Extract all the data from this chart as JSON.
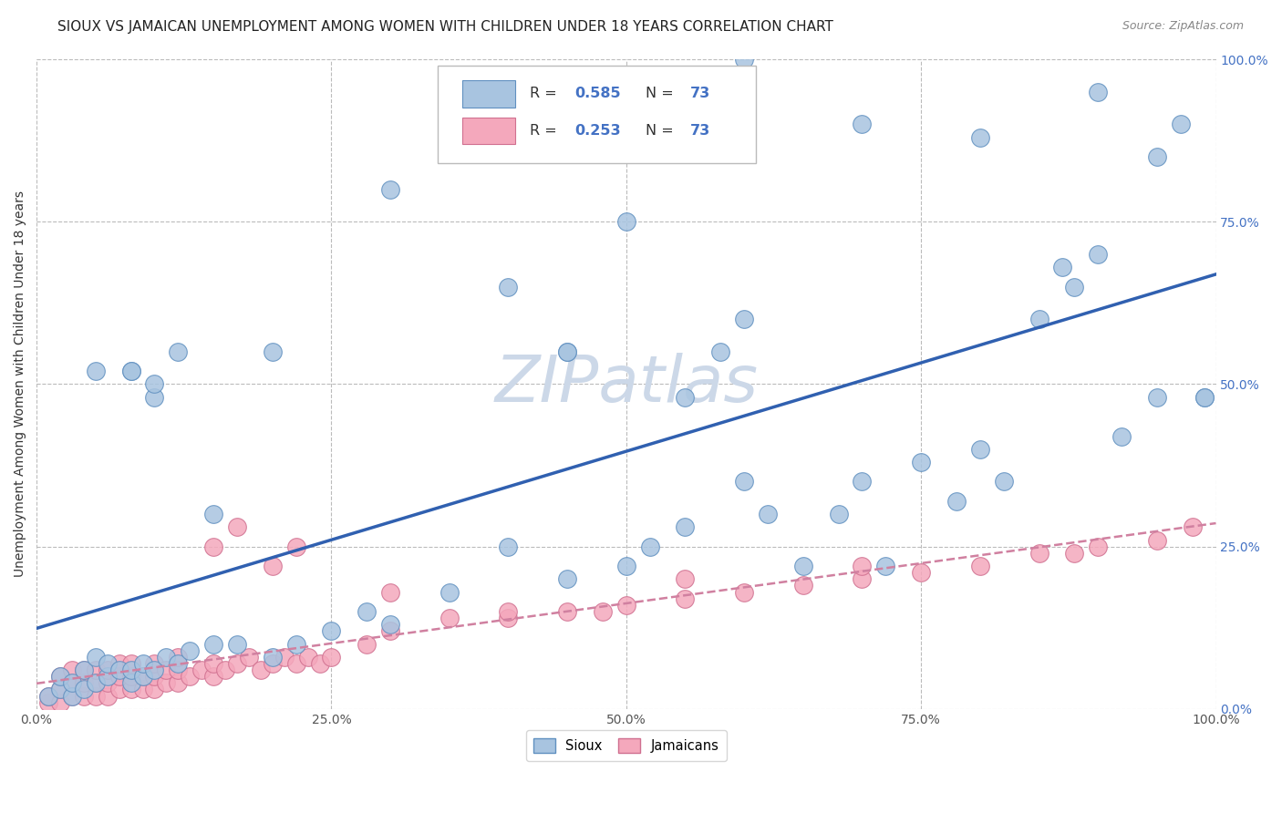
{
  "title": "SIOUX VS JAMAICAN UNEMPLOYMENT AMONG WOMEN WITH CHILDREN UNDER 18 YEARS CORRELATION CHART",
  "source": "Source: ZipAtlas.com",
  "ylabel": "Unemployment Among Women with Children Under 18 years",
  "watermark": "ZIPatlas",
  "sioux_color": "#a8c4e0",
  "sioux_edge_color": "#6090c0",
  "jamaican_color": "#f4a8bc",
  "jamaican_edge_color": "#d07090",
  "sioux_line_color": "#3060b0",
  "jamaican_line_color": "#d06080",
  "jamaican_dash_color": "#d080a0",
  "R_N_color": "#4472c4",
  "background_color": "#ffffff",
  "grid_color": "#bbbbbb",
  "watermark_color": "#ccd8e8",
  "sioux_x": [
    0.01,
    0.02,
    0.02,
    0.03,
    0.03,
    0.04,
    0.04,
    0.05,
    0.05,
    0.06,
    0.06,
    0.07,
    0.08,
    0.08,
    0.09,
    0.09,
    0.1,
    0.11,
    0.12,
    0.13,
    0.05,
    0.08,
    0.1,
    0.12,
    0.15,
    0.17,
    0.2,
    0.22,
    0.25,
    0.28,
    0.3,
    0.35,
    0.4,
    0.45,
    0.45,
    0.5,
    0.52,
    0.55,
    0.6,
    0.62,
    0.65,
    0.68,
    0.7,
    0.72,
    0.75,
    0.78,
    0.8,
    0.82,
    0.85,
    0.87,
    0.88,
    0.9,
    0.92,
    0.95,
    0.97,
    0.99,
    0.58,
    0.6,
    0.1,
    0.08,
    0.15,
    0.2,
    0.3,
    0.4,
    0.5,
    0.6,
    0.7,
    0.8,
    0.9,
    0.95,
    0.99,
    0.45,
    0.55
  ],
  "sioux_y": [
    0.02,
    0.03,
    0.05,
    0.02,
    0.04,
    0.03,
    0.06,
    0.04,
    0.08,
    0.05,
    0.07,
    0.06,
    0.04,
    0.06,
    0.05,
    0.07,
    0.06,
    0.08,
    0.07,
    0.09,
    0.52,
    0.52,
    0.48,
    0.55,
    0.1,
    0.1,
    0.08,
    0.1,
    0.12,
    0.15,
    0.13,
    0.18,
    0.25,
    0.2,
    0.55,
    0.22,
    0.25,
    0.28,
    0.35,
    0.3,
    0.22,
    0.3,
    0.35,
    0.22,
    0.38,
    0.32,
    0.4,
    0.35,
    0.6,
    0.68,
    0.65,
    0.7,
    0.42,
    0.48,
    0.9,
    0.48,
    0.55,
    0.6,
    0.5,
    0.52,
    0.3,
    0.55,
    0.8,
    0.65,
    0.75,
    1.0,
    0.9,
    0.88,
    0.95,
    0.85,
    0.48,
    0.55,
    0.48
  ],
  "jamaican_x": [
    0.01,
    0.01,
    0.02,
    0.02,
    0.02,
    0.03,
    0.03,
    0.03,
    0.04,
    0.04,
    0.04,
    0.05,
    0.05,
    0.05,
    0.06,
    0.06,
    0.06,
    0.07,
    0.07,
    0.07,
    0.08,
    0.08,
    0.08,
    0.09,
    0.09,
    0.1,
    0.1,
    0.1,
    0.11,
    0.11,
    0.12,
    0.12,
    0.12,
    0.13,
    0.14,
    0.15,
    0.15,
    0.16,
    0.17,
    0.18,
    0.19,
    0.2,
    0.21,
    0.22,
    0.23,
    0.24,
    0.15,
    0.17,
    0.2,
    0.22,
    0.25,
    0.28,
    0.3,
    0.35,
    0.4,
    0.45,
    0.48,
    0.5,
    0.55,
    0.6,
    0.65,
    0.7,
    0.75,
    0.8,
    0.85,
    0.88,
    0.9,
    0.95,
    0.98,
    0.3,
    0.4,
    0.55,
    0.7
  ],
  "jamaican_y": [
    0.01,
    0.02,
    0.01,
    0.03,
    0.05,
    0.02,
    0.04,
    0.06,
    0.02,
    0.04,
    0.06,
    0.02,
    0.04,
    0.06,
    0.02,
    0.04,
    0.06,
    0.03,
    0.05,
    0.07,
    0.03,
    0.05,
    0.07,
    0.03,
    0.05,
    0.03,
    0.05,
    0.07,
    0.04,
    0.06,
    0.04,
    0.06,
    0.08,
    0.05,
    0.06,
    0.05,
    0.07,
    0.06,
    0.07,
    0.08,
    0.06,
    0.07,
    0.08,
    0.07,
    0.08,
    0.07,
    0.25,
    0.28,
    0.22,
    0.25,
    0.08,
    0.1,
    0.12,
    0.14,
    0.14,
    0.15,
    0.15,
    0.16,
    0.17,
    0.18,
    0.19,
    0.2,
    0.21,
    0.22,
    0.24,
    0.24,
    0.25,
    0.26,
    0.28,
    0.18,
    0.15,
    0.2,
    0.22
  ],
  "ticks": [
    0.0,
    0.25,
    0.5,
    0.75,
    1.0
  ],
  "tick_labels": [
    "0.0%",
    "25.0%",
    "50.0%",
    "75.0%",
    "100.0%"
  ],
  "xlim": [
    0.0,
    1.0
  ],
  "ylim": [
    0.0,
    1.0
  ],
  "figsize": [
    14.06,
    8.92
  ],
  "dpi": 100
}
